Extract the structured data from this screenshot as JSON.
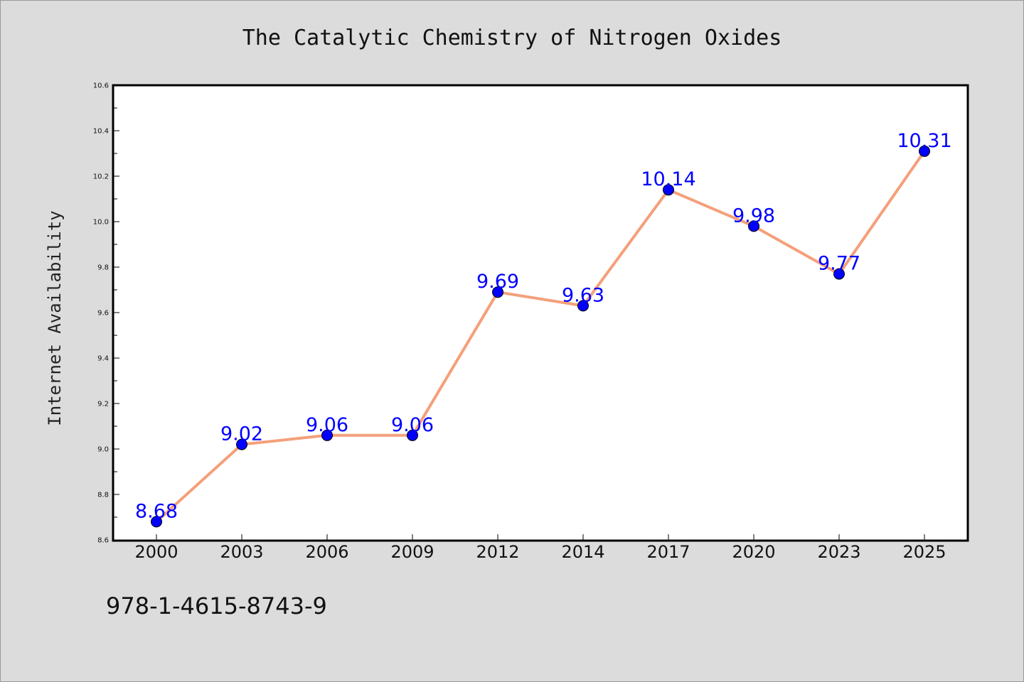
{
  "colors": {
    "background": "#dcdcdc",
    "plot_area": "#ffffff",
    "line": "#f4a07a",
    "marker": "#0000ff",
    "data_label": "#0000ff"
  },
  "footer": {
    "isbn": "978-1-4615-8743-9"
  },
  "chart_data": {
    "type": "line",
    "title": "The Catalytic Chemistry of Nitrogen Oxides",
    "xlabel": "",
    "ylabel": "Internet Availability",
    "categories": [
      "2000",
      "2003",
      "2006",
      "2009",
      "2012",
      "2014",
      "2017",
      "2020",
      "2023",
      "2025"
    ],
    "series": [
      {
        "values": [
          8.68,
          9.02,
          9.06,
          9.06,
          9.69,
          9.63,
          10.14,
          9.98,
          9.77,
          10.31
        ],
        "data_labels": [
          "8.68",
          "9.02",
          "9.06",
          "9.06",
          "9.69",
          "9.63",
          "10.14",
          "9.98",
          "9.77",
          "10.31"
        ]
      }
    ],
    "ylim": [
      8.6,
      10.6
    ],
    "yticks": [
      "8.6",
      "8.8",
      "9.0",
      "9.2",
      "9.4",
      "9.6",
      "9.8",
      "10.0",
      "10.2",
      "10.4",
      "10.6"
    ],
    "grid": false,
    "legend": "none"
  }
}
